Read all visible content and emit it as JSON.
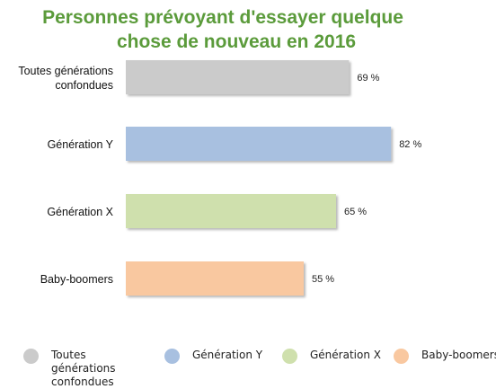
{
  "chart_data": {
    "type": "bar",
    "orientation": "horizontal",
    "title_line1": "Personnes prévoyant d'essayer quelque",
    "title_line2": "chose de nouveau en 2016",
    "categories": [
      [
        "Toutes générations",
        "confondues"
      ],
      [
        "Génération Y"
      ],
      [
        "Génération X"
      ],
      [
        "Baby-boomers"
      ]
    ],
    "values": [
      69,
      82,
      65,
      55
    ],
    "value_labels": [
      "69 %",
      "82 %",
      "65 %",
      "55 %"
    ],
    "colors": [
      "#cbcbcb",
      "#a8c0e0",
      "#cfe0ad",
      "#f9c8a0"
    ],
    "grid": false,
    "legend_position": "bottom",
    "legend": [
      [
        "Toutes générations",
        "confondues"
      ],
      [
        "Génération Y"
      ],
      [
        "Génération X"
      ],
      [
        "Baby-boomers"
      ]
    ]
  }
}
